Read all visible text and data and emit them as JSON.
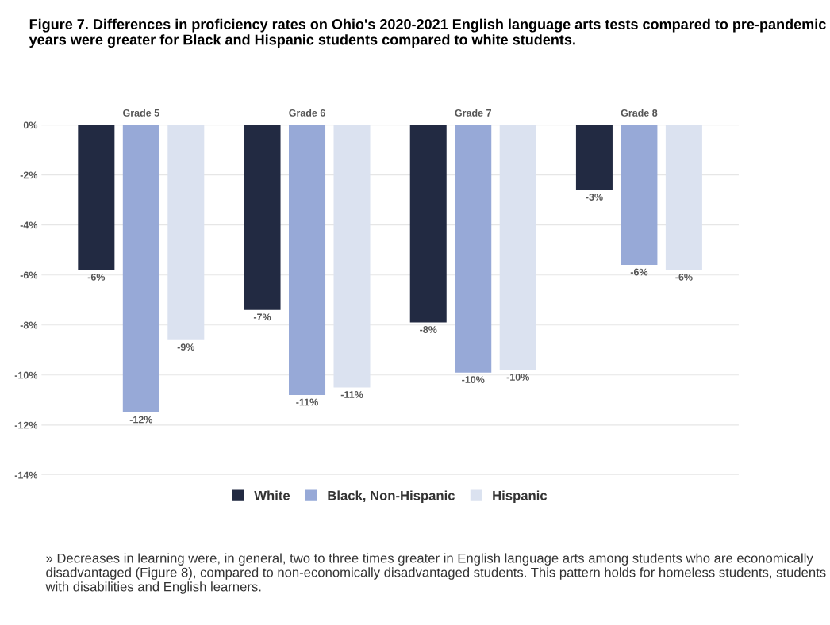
{
  "chart_data": {
    "type": "bar",
    "title": "Figure 7. Differences in proficiency rates on Ohio's 2020-2021 English language arts tests compared to pre-pandemic years were greater for Black and Hispanic students compared to white students.",
    "categories": [
      "Grade 5",
      "Grade 6",
      "Grade 7",
      "Grade 8"
    ],
    "series": [
      {
        "name": "White",
        "color": "#222a42",
        "values": [
          -5.8,
          -7.4,
          -7.9,
          -2.6
        ],
        "value_labels": [
          "-6%",
          "-7%",
          "-8%",
          "-3%"
        ]
      },
      {
        "name": "Black, Non-Hispanic",
        "color": "#97a9d7",
        "values": [
          -11.5,
          -10.8,
          -9.9,
          -5.6
        ],
        "value_labels": [
          "-12%",
          "-11%",
          "-10%",
          "-6%"
        ]
      },
      {
        "name": "Hispanic",
        "color": "#dbe2f0",
        "values": [
          -8.6,
          -10.5,
          -9.8,
          -5.8
        ],
        "value_labels": [
          "-9%",
          "-11%",
          "-10%",
          "-6%"
        ]
      }
    ],
    "ylim": [
      -14,
      0
    ],
    "yticks": [
      {
        "value": 0,
        "label": "0%"
      },
      {
        "value": -2,
        "label": "-2%"
      },
      {
        "value": -4,
        "label": "-4%"
      },
      {
        "value": -6,
        "label": "-6%"
      },
      {
        "value": -8,
        "label": "-8%"
      },
      {
        "value": -10,
        "label": "-10%"
      },
      {
        "value": -12,
        "label": "-12%"
      },
      {
        "value": -14,
        "label": "-14%"
      }
    ],
    "grid": "y",
    "legend": "bottom",
    "annotations": [
      "» Decreases in learning were, in general, two to three times greater in English language arts among students who are economically disadvantaged (Figure 8), compared to non-economically disadvantaged students. This pattern holds for homeless students, students with disabilities and English learners."
    ]
  }
}
